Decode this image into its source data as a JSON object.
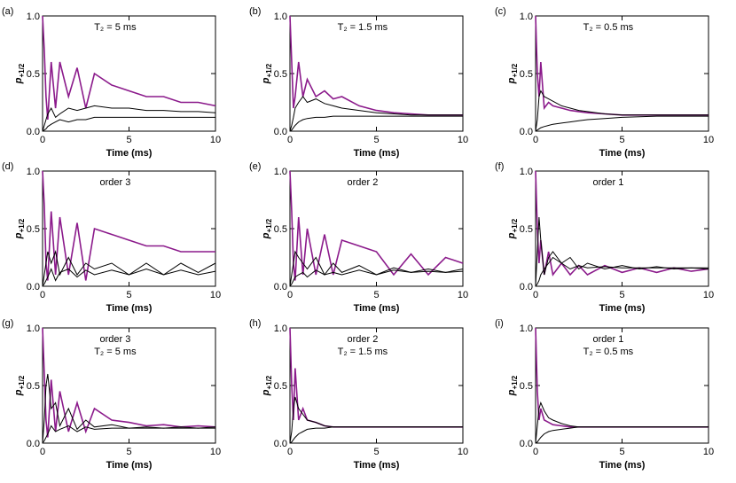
{
  "chart_data": [
    {
      "type": "line",
      "panel_label": "(a)",
      "annotations": [
        "T₂ = 5 ms"
      ],
      "xlabel": "Time (ms)",
      "ylabel": "p",
      "ylabel_sub": "+1/2",
      "xlim": [
        0,
        10
      ],
      "ylim": [
        0,
        1
      ],
      "xticks": [
        0,
        5,
        10
      ],
      "yticks": [
        {
          "value": 0,
          "label": "0.0"
        },
        {
          "value": 0.5,
          "label": "0.5"
        },
        {
          "value": 1,
          "label": "1.0"
        }
      ],
      "x": [
        0,
        0.1,
        0.2,
        0.3,
        0.5,
        0.75,
        1,
        1.5,
        2,
        2.5,
        3,
        4,
        5,
        6,
        7,
        8,
        9,
        10
      ],
      "series": [
        {
          "color": "#8b1a8b",
          "values": [
            1,
            0.7,
            0.3,
            0.1,
            0.6,
            0.2,
            0.6,
            0.3,
            0.55,
            0.2,
            0.5,
            0.4,
            0.35,
            0.3,
            0.3,
            0.25,
            0.25,
            0.22
          ]
        },
        {
          "color": "#000000",
          "values": [
            0,
            0.05,
            0.1,
            0.15,
            0.2,
            0.12,
            0.15,
            0.2,
            0.18,
            0.2,
            0.22,
            0.2,
            0.2,
            0.18,
            0.18,
            0.17,
            0.17,
            0.16
          ]
        },
        {
          "color": "#000000",
          "values": [
            0,
            0.01,
            0.02,
            0.04,
            0.06,
            0.08,
            0.1,
            0.08,
            0.1,
            0.1,
            0.12,
            0.12,
            0.12,
            0.12,
            0.12,
            0.12,
            0.12,
            0.12
          ]
        }
      ]
    },
    {
      "type": "line",
      "panel_label": "(b)",
      "annotations": [
        "T₂ = 1.5 ms"
      ],
      "xlabel": "Time (ms)",
      "ylabel": "p",
      "ylabel_sub": "+1/2",
      "xlim": [
        0,
        10
      ],
      "ylim": [
        0,
        1
      ],
      "xticks": [
        0,
        5,
        10
      ],
      "yticks": [
        {
          "value": 0,
          "label": "0.0"
        },
        {
          "value": 0.5,
          "label": "0.5"
        },
        {
          "value": 1,
          "label": "1.0"
        }
      ],
      "x": [
        0,
        0.1,
        0.2,
        0.3,
        0.5,
        0.75,
        1,
        1.5,
        2,
        2.5,
        3,
        4,
        5,
        6,
        7,
        8,
        9,
        10
      ],
      "series": [
        {
          "color": "#8b1a8b",
          "values": [
            1,
            0.6,
            0.2,
            0.3,
            0.6,
            0.3,
            0.45,
            0.3,
            0.35,
            0.28,
            0.3,
            0.22,
            0.18,
            0.16,
            0.15,
            0.14,
            0.14,
            0.14
          ]
        },
        {
          "color": "#000000",
          "values": [
            0,
            0.05,
            0.12,
            0.2,
            0.25,
            0.3,
            0.25,
            0.28,
            0.24,
            0.22,
            0.2,
            0.18,
            0.16,
            0.15,
            0.14,
            0.14,
            0.14,
            0.14
          ]
        },
        {
          "color": "#000000",
          "values": [
            0,
            0.01,
            0.03,
            0.05,
            0.08,
            0.1,
            0.11,
            0.12,
            0.12,
            0.13,
            0.13,
            0.13,
            0.13,
            0.13,
            0.13,
            0.13,
            0.13,
            0.13
          ]
        }
      ]
    },
    {
      "type": "line",
      "panel_label": "(c)",
      "annotations": [
        "T₂ = 0.5 ms"
      ],
      "xlabel": "Time (ms)",
      "ylabel": "p",
      "ylabel_sub": "+1/2",
      "xlim": [
        0,
        10
      ],
      "ylim": [
        0,
        1
      ],
      "xticks": [
        0,
        5,
        10
      ],
      "yticks": [
        {
          "value": 0,
          "label": "0.0"
        },
        {
          "value": 0.5,
          "label": "0.5"
        },
        {
          "value": 1,
          "label": "1.0"
        }
      ],
      "x": [
        0,
        0.1,
        0.2,
        0.3,
        0.5,
        0.75,
        1,
        1.5,
        2,
        2.5,
        3,
        4,
        5,
        6,
        7,
        8,
        9,
        10
      ],
      "series": [
        {
          "color": "#8b1a8b",
          "values": [
            1,
            0.5,
            0.3,
            0.6,
            0.2,
            0.25,
            0.22,
            0.2,
            0.18,
            0.17,
            0.16,
            0.15,
            0.14,
            0.14,
            0.14,
            0.14,
            0.14,
            0.14
          ]
        },
        {
          "color": "#000000",
          "values": [
            0,
            0.1,
            0.3,
            0.35,
            0.3,
            0.28,
            0.26,
            0.22,
            0.2,
            0.18,
            0.17,
            0.15,
            0.14,
            0.14,
            0.14,
            0.14,
            0.14,
            0.14
          ]
        },
        {
          "color": "#000000",
          "values": [
            0,
            0.01,
            0.02,
            0.03,
            0.04,
            0.05,
            0.06,
            0.07,
            0.08,
            0.09,
            0.1,
            0.11,
            0.12,
            0.125,
            0.13,
            0.13,
            0.13,
            0.13
          ]
        }
      ]
    },
    {
      "type": "line",
      "panel_label": "(d)",
      "annotations": [
        "order 3"
      ],
      "xlabel": "Time (ms)",
      "ylabel": "p",
      "ylabel_sub": "+1/2",
      "xlim": [
        0,
        10
      ],
      "ylim": [
        0,
        1
      ],
      "xticks": [
        0,
        5,
        10
      ],
      "yticks": [
        {
          "value": 0,
          "label": "0.0"
        },
        {
          "value": 0.5,
          "label": "0.5"
        },
        {
          "value": 1,
          "label": "1.0"
        }
      ],
      "x": [
        0,
        0.1,
        0.2,
        0.3,
        0.5,
        0.75,
        1,
        1.5,
        2,
        2.5,
        3,
        4,
        5,
        6,
        7,
        8,
        9,
        10
      ],
      "series": [
        {
          "color": "#8b1a8b",
          "values": [
            1,
            0.7,
            0.2,
            0.05,
            0.65,
            0.1,
            0.6,
            0.1,
            0.55,
            0.05,
            0.5,
            0.45,
            0.4,
            0.35,
            0.35,
            0.3,
            0.3,
            0.3
          ]
        },
        {
          "color": "#000000",
          "values": [
            0,
            0.1,
            0.2,
            0.3,
            0.2,
            0.3,
            0.1,
            0.25,
            0.1,
            0.2,
            0.15,
            0.2,
            0.1,
            0.2,
            0.1,
            0.2,
            0.12,
            0.2
          ]
        },
        {
          "color": "#000000",
          "values": [
            0,
            0.02,
            0.05,
            0.08,
            0.15,
            0.05,
            0.12,
            0.15,
            0.08,
            0.14,
            0.1,
            0.14,
            0.1,
            0.15,
            0.1,
            0.14,
            0.1,
            0.13
          ]
        }
      ]
    },
    {
      "type": "line",
      "panel_label": "(e)",
      "annotations": [
        "order 2"
      ],
      "xlabel": "Time (ms)",
      "ylabel": "p",
      "ylabel_sub": "+1/2",
      "xlim": [
        0,
        10
      ],
      "ylim": [
        0,
        1
      ],
      "xticks": [
        0,
        5,
        10
      ],
      "yticks": [
        {
          "value": 0,
          "label": "0.0"
        },
        {
          "value": 0.5,
          "label": "0.5"
        },
        {
          "value": 1,
          "label": "1.0"
        }
      ],
      "x": [
        0,
        0.1,
        0.2,
        0.3,
        0.5,
        0.75,
        1,
        1.5,
        2,
        2.5,
        3,
        4,
        5,
        6,
        7,
        8,
        9,
        10
      ],
      "series": [
        {
          "color": "#8b1a8b",
          "values": [
            1,
            0.65,
            0.2,
            0.05,
            0.6,
            0.1,
            0.5,
            0.1,
            0.45,
            0.1,
            0.4,
            0.35,
            0.3,
            0.1,
            0.28,
            0.1,
            0.25,
            0.2
          ]
        },
        {
          "color": "#000000",
          "values": [
            0,
            0.1,
            0.2,
            0.3,
            0.25,
            0.2,
            0.15,
            0.25,
            0.1,
            0.2,
            0.12,
            0.18,
            0.1,
            0.16,
            0.12,
            0.15,
            0.12,
            0.15
          ]
        },
        {
          "color": "#000000",
          "values": [
            0,
            0.02,
            0.05,
            0.08,
            0.1,
            0.12,
            0.08,
            0.14,
            0.1,
            0.12,
            0.1,
            0.14,
            0.1,
            0.14,
            0.12,
            0.13,
            0.12,
            0.13
          ]
        }
      ]
    },
    {
      "type": "line",
      "panel_label": "(f)",
      "annotations": [
        "order 1"
      ],
      "xlabel": "Time (ms)",
      "ylabel": "p",
      "ylabel_sub": "+1/2",
      "xlim": [
        0,
        10
      ],
      "ylim": [
        0,
        1
      ],
      "xticks": [
        0,
        5,
        10
      ],
      "yticks": [
        {
          "value": 0,
          "label": "0.0"
        },
        {
          "value": 0.5,
          "label": "0.5"
        },
        {
          "value": 1,
          "label": "1.0"
        }
      ],
      "x": [
        0,
        0.1,
        0.2,
        0.3,
        0.5,
        0.75,
        1,
        1.5,
        2,
        2.5,
        3,
        4,
        5,
        6,
        7,
        8,
        9,
        10
      ],
      "series": [
        {
          "color": "#8b1a8b",
          "values": [
            1,
            0.5,
            0.2,
            0.4,
            0.1,
            0.3,
            0.1,
            0.2,
            0.1,
            0.18,
            0.1,
            0.18,
            0.12,
            0.16,
            0.12,
            0.16,
            0.13,
            0.15
          ]
        },
        {
          "color": "#000000",
          "values": [
            0,
            0.3,
            0.6,
            0.4,
            0.1,
            0.25,
            0.3,
            0.2,
            0.25,
            0.15,
            0.2,
            0.15,
            0.18,
            0.15,
            0.17,
            0.15,
            0.16,
            0.15
          ]
        },
        {
          "color": "#000000",
          "values": [
            0,
            0.02,
            0.05,
            0.1,
            0.15,
            0.2,
            0.25,
            0.2,
            0.15,
            0.18,
            0.16,
            0.17,
            0.16,
            0.16,
            0.16,
            0.16,
            0.16,
            0.16
          ]
        }
      ]
    },
    {
      "type": "line",
      "panel_label": "(g)",
      "annotations": [
        "order 3",
        "T₂ = 5 ms"
      ],
      "xlabel": "Time (ms)",
      "ylabel": "p",
      "ylabel_sub": "+1/2",
      "xlim": [
        0,
        10
      ],
      "ylim": [
        0,
        1
      ],
      "xticks": [
        0,
        5,
        10
      ],
      "yticks": [
        {
          "value": 0,
          "label": "0.0"
        },
        {
          "value": 0.5,
          "label": "0.5"
        },
        {
          "value": 1,
          "label": "1.0"
        }
      ],
      "x": [
        0,
        0.1,
        0.2,
        0.3,
        0.5,
        0.75,
        1,
        1.5,
        2,
        2.5,
        3,
        4,
        5,
        6,
        7,
        8,
        9,
        10
      ],
      "series": [
        {
          "color": "#8b1a8b",
          "values": [
            1,
            0.6,
            0.2,
            0.05,
            0.55,
            0.1,
            0.45,
            0.1,
            0.35,
            0.1,
            0.3,
            0.2,
            0.18,
            0.15,
            0.16,
            0.14,
            0.15,
            0.14
          ]
        },
        {
          "color": "#000000",
          "values": [
            0,
            0.2,
            0.5,
            0.6,
            0.3,
            0.35,
            0.15,
            0.3,
            0.12,
            0.2,
            0.14,
            0.16,
            0.13,
            0.14,
            0.13,
            0.14,
            0.13,
            0.14
          ]
        },
        {
          "color": "#000000",
          "values": [
            0,
            0.02,
            0.05,
            0.08,
            0.15,
            0.1,
            0.12,
            0.15,
            0.1,
            0.14,
            0.12,
            0.13,
            0.13,
            0.13,
            0.13,
            0.13,
            0.13,
            0.13
          ]
        }
      ]
    },
    {
      "type": "line",
      "panel_label": "(h)",
      "annotations": [
        "order 2",
        "T₂ = 1.5 ms"
      ],
      "xlabel": "Time (ms)",
      "ylabel": "p",
      "ylabel_sub": "+1/2",
      "xlim": [
        0,
        10
      ],
      "ylim": [
        0,
        1
      ],
      "xticks": [
        0,
        5,
        10
      ],
      "yticks": [
        {
          "value": 0,
          "label": "0.0"
        },
        {
          "value": 0.5,
          "label": "0.5"
        },
        {
          "value": 1,
          "label": "1.0"
        }
      ],
      "x": [
        0,
        0.1,
        0.2,
        0.3,
        0.5,
        0.75,
        1,
        1.5,
        2,
        2.5,
        3,
        4,
        5,
        6,
        7,
        8,
        9,
        10
      ],
      "series": [
        {
          "color": "#8b1a8b",
          "values": [
            1,
            0.5,
            0.2,
            0.65,
            0.2,
            0.3,
            0.2,
            0.18,
            0.15,
            0.14,
            0.14,
            0.14,
            0.14,
            0.14,
            0.14,
            0.14,
            0.14,
            0.14
          ]
        },
        {
          "color": "#000000",
          "values": [
            0,
            0.1,
            0.3,
            0.4,
            0.3,
            0.25,
            0.2,
            0.18,
            0.15,
            0.14,
            0.14,
            0.14,
            0.14,
            0.14,
            0.14,
            0.14,
            0.14,
            0.14
          ]
        },
        {
          "color": "#000000",
          "values": [
            0,
            0.01,
            0.03,
            0.05,
            0.08,
            0.1,
            0.12,
            0.13,
            0.13,
            0.14,
            0.14,
            0.14,
            0.14,
            0.14,
            0.14,
            0.14,
            0.14,
            0.14
          ]
        }
      ]
    },
    {
      "type": "line",
      "panel_label": "(i)",
      "annotations": [
        "order 1",
        "T₂ = 0.5 ms"
      ],
      "xlabel": "Time (ms)",
      "ylabel": "p",
      "ylabel_sub": "+1/2",
      "xlim": [
        0,
        10
      ],
      "ylim": [
        0,
        1
      ],
      "xticks": [
        0,
        5,
        10
      ],
      "yticks": [
        {
          "value": 0,
          "label": "0.0"
        },
        {
          "value": 0.5,
          "label": "0.5"
        },
        {
          "value": 1,
          "label": "1.0"
        }
      ],
      "x": [
        0,
        0.1,
        0.2,
        0.3,
        0.5,
        0.75,
        1,
        1.5,
        2,
        2.5,
        3,
        4,
        5,
        6,
        7,
        8,
        9,
        10
      ],
      "series": [
        {
          "color": "#8b1a8b",
          "values": [
            1,
            0.45,
            0.2,
            0.3,
            0.2,
            0.18,
            0.16,
            0.15,
            0.14,
            0.14,
            0.14,
            0.14,
            0.14,
            0.14,
            0.14,
            0.14,
            0.14,
            0.14
          ]
        },
        {
          "color": "#000000",
          "values": [
            0,
            0.15,
            0.3,
            0.35,
            0.28,
            0.22,
            0.2,
            0.17,
            0.15,
            0.14,
            0.14,
            0.14,
            0.14,
            0.14,
            0.14,
            0.14,
            0.14,
            0.14
          ]
        },
        {
          "color": "#000000",
          "values": [
            0,
            0.01,
            0.03,
            0.05,
            0.08,
            0.1,
            0.11,
            0.12,
            0.13,
            0.14,
            0.14,
            0.14,
            0.14,
            0.14,
            0.14,
            0.14,
            0.14,
            0.14
          ]
        }
      ]
    }
  ]
}
